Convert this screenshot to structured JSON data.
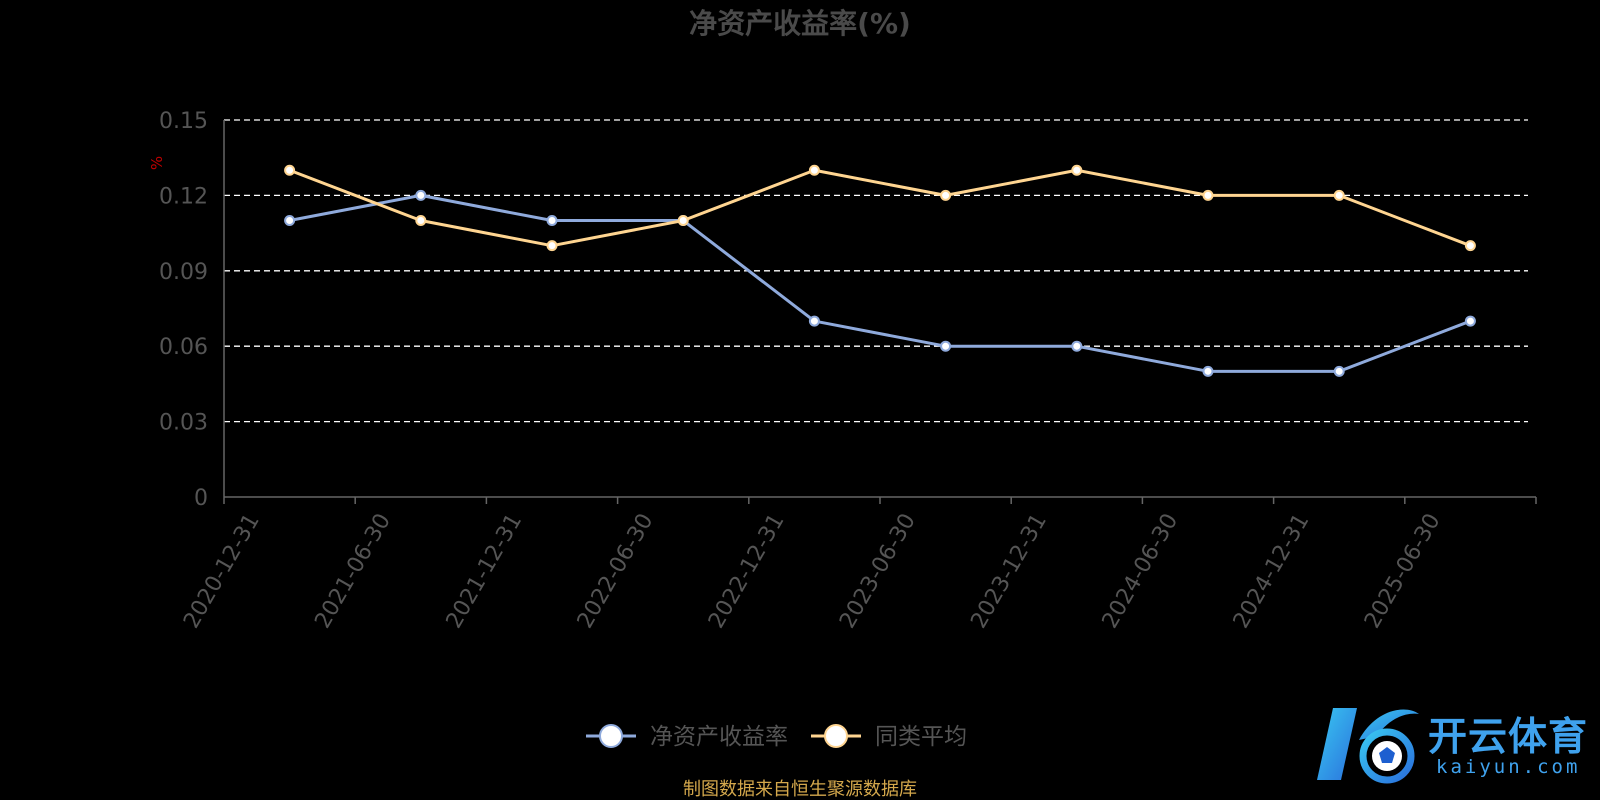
{
  "chart_data": {
    "type": "line",
    "title": "净资产收益率(%)",
    "ylabel": "%",
    "xlabel": "",
    "categories": [
      "2020-12-31",
      "2021-06-30",
      "2021-12-31",
      "2022-06-30",
      "2022-12-31",
      "2023-06-30",
      "2023-12-31",
      "2024-06-30",
      "2024-12-31",
      "2025-06-30"
    ],
    "ylim": [
      0,
      0.15
    ],
    "yticks": [
      "0",
      "0.03",
      "0.06",
      "0.09",
      "0.12",
      "0.15"
    ],
    "grid": true,
    "legend_position": "bottom-center",
    "series": [
      {
        "name": "净资产收益率",
        "color": "#8faadc",
        "values": [
          0.11,
          0.12,
          0.11,
          0.11,
          0.07,
          0.06,
          0.06,
          0.05,
          0.05,
          0.07
        ]
      },
      {
        "name": "同类平均",
        "color": "#ffd591",
        "values": [
          0.13,
          0.11,
          0.1,
          0.11,
          0.13,
          0.12,
          0.13,
          0.12,
          0.12,
          0.1
        ]
      }
    ]
  },
  "footer": {
    "source": "制图数据来自恒生聚源数据库"
  },
  "watermark": {
    "brand": "开云体育",
    "domain": "kaiyun.com"
  },
  "colors": {
    "background": "#000000",
    "axis": "#666666",
    "grid": "#ffffff",
    "tick_text": "#555555",
    "source_text": "#d4a84c"
  }
}
